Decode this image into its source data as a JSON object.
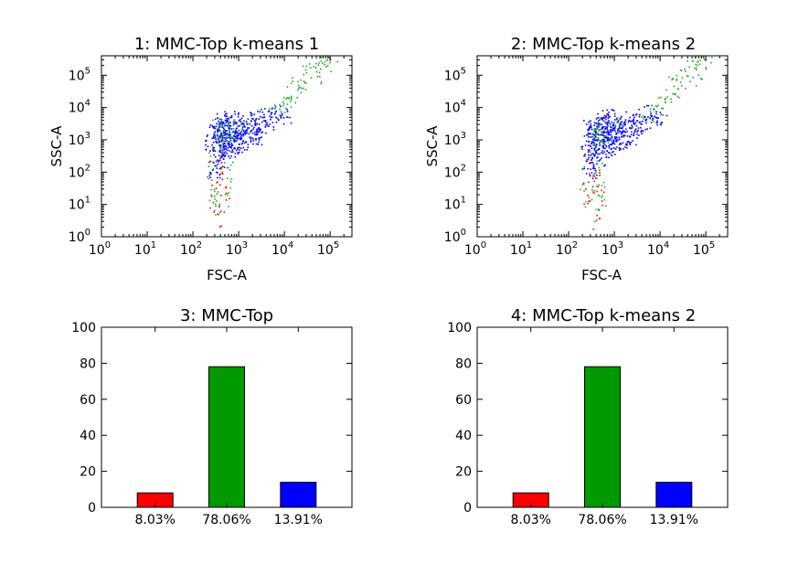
{
  "figure": {
    "colors": {
      "red": "#ff0000",
      "green": "#009900",
      "blue": "#0000ff",
      "green_points": "#22aa22"
    }
  },
  "chart_data": [
    {
      "id": "p1",
      "type": "scatter",
      "title": "1: MMC-Top k-means 1",
      "xlabel": "FSC-A",
      "ylabel": "SSC-A",
      "xscale": "log",
      "yscale": "log",
      "xlim": [
        1,
        300000
      ],
      "ylim": [
        1,
        400000
      ],
      "tick_values": [
        1,
        10,
        100,
        1000,
        10000,
        100000
      ],
      "tick_labels": [
        {
          "base": "10",
          "exp": "0"
        },
        {
          "base": "10",
          "exp": "1"
        },
        {
          "base": "10",
          "exp": "2"
        },
        {
          "base": "10",
          "exp": "3"
        },
        {
          "base": "10",
          "exp": "4"
        },
        {
          "base": "10",
          "exp": "5"
        }
      ],
      "series": [
        {
          "color": "#0000ff",
          "points": [
            [
              250,
              2000
            ],
            [
              300,
              2500
            ],
            [
              350,
              3000
            ],
            [
              400,
              1500
            ],
            [
              450,
              1000
            ],
            [
              500,
              2000
            ],
            [
              550,
              3500
            ],
            [
              600,
              2500
            ],
            [
              650,
              1200
            ],
            [
              700,
              2000
            ],
            [
              800,
              3000
            ],
            [
              900,
              1800
            ],
            [
              1000,
              2500
            ],
            [
              1100,
              1500
            ],
            [
              1200,
              3000
            ],
            [
              1400,
              2000
            ],
            [
              1600,
              4000
            ],
            [
              2000,
              3000
            ],
            [
              2500,
              5000
            ],
            [
              3000,
              2000
            ],
            [
              3500,
              6000
            ],
            [
              300,
              500
            ],
            [
              350,
              300
            ],
            [
              400,
              800
            ],
            [
              450,
              200
            ],
            [
              500,
              600
            ],
            [
              300,
              100
            ],
            [
              280,
              150
            ],
            [
              320,
              1000
            ],
            [
              600,
              800
            ],
            [
              700,
              500
            ],
            [
              800,
              900
            ],
            [
              1000,
              1200
            ],
            [
              1500,
              1000
            ],
            [
              2000,
              1500
            ],
            [
              5000,
              4000
            ],
            [
              6000,
              8000
            ],
            [
              260,
              800
            ],
            [
              380,
              400
            ],
            [
              420,
              1200
            ],
            [
              520,
              400
            ],
            [
              750,
              1500
            ],
            [
              950,
              700
            ],
            [
              1300,
              800
            ],
            [
              1800,
              2500
            ],
            [
              2200,
              1200
            ],
            [
              4000,
              3000
            ],
            [
              8000,
              6000
            ],
            [
              10000,
              5000
            ],
            [
              500,
              5000
            ],
            [
              400,
              4000
            ],
            [
              700,
              6000
            ]
          ]
        },
        {
          "color": "#22aa22",
          "points": [
            [
              15000,
              30000
            ],
            [
              20000,
              60000
            ],
            [
              25000,
              100000
            ],
            [
              30000,
              150000
            ],
            [
              40000,
              200000
            ],
            [
              50000,
              250000
            ],
            [
              60000,
              120000
            ],
            [
              80000,
              200000
            ],
            [
              100000,
              300000
            ],
            [
              12000,
              20000
            ],
            [
              10000,
              15000
            ],
            [
              8000,
              10000
            ],
            [
              6000,
              8000
            ],
            [
              5000,
              6000
            ],
            [
              30000,
              50000
            ],
            [
              45000,
              80000
            ],
            [
              70000,
              250000
            ],
            [
              25000,
              40000
            ],
            [
              18000,
              25000
            ],
            [
              9000,
              12000
            ],
            [
              300,
              1000
            ],
            [
              350,
              1500
            ],
            [
              400,
              2000
            ],
            [
              450,
              2500
            ],
            [
              500,
              1800
            ],
            [
              300,
              200
            ],
            [
              350,
              80
            ],
            [
              400,
              30
            ],
            [
              320,
              10
            ],
            [
              380,
              5
            ],
            [
              450,
              15
            ],
            [
              280,
              40
            ],
            [
              330,
              3000
            ],
            [
              420,
              1200
            ],
            [
              600,
              1500
            ],
            [
              700,
              1000
            ],
            [
              800,
              2500
            ],
            [
              1000,
              3000
            ],
            [
              300,
              300
            ],
            [
              360,
              600
            ],
            [
              500,
              150
            ],
            [
              550,
              40
            ],
            [
              250,
              20
            ]
          ]
        },
        {
          "color": "#ff0000",
          "points": [
            [
              270,
              20
            ],
            [
              300,
              10
            ],
            [
              330,
              50
            ],
            [
              380,
              8
            ],
            [
              420,
              30
            ],
            [
              480,
              15
            ],
            [
              300,
              100
            ],
            [
              350,
              200
            ],
            [
              280,
              60
            ],
            [
              260,
              300
            ],
            [
              400,
              5
            ],
            [
              500,
              80
            ],
            [
              320,
              3
            ],
            [
              360,
              12
            ],
            [
              440,
              40
            ]
          ]
        }
      ]
    },
    {
      "id": "p2",
      "type": "scatter",
      "title": "2: MMC-Top k-means 2",
      "xlabel": "FSC-A",
      "ylabel": "SSC-A",
      "xscale": "log",
      "yscale": "log",
      "xlim": [
        1,
        300000
      ],
      "ylim": [
        1,
        400000
      ],
      "tick_values": [
        1,
        10,
        100,
        1000,
        10000,
        100000
      ],
      "tick_labels": [
        {
          "base": "10",
          "exp": "0"
        },
        {
          "base": "10",
          "exp": "1"
        },
        {
          "base": "10",
          "exp": "2"
        },
        {
          "base": "10",
          "exp": "3"
        },
        {
          "base": "10",
          "exp": "4"
        },
        {
          "base": "10",
          "exp": "5"
        }
      ],
      "series": [
        {
          "color": "#0000ff",
          "points": [
            [
              250,
              2000
            ],
            [
              300,
              2500
            ],
            [
              350,
              3000
            ],
            [
              400,
              1500
            ],
            [
              450,
              1000
            ],
            [
              500,
              2000
            ],
            [
              550,
              3500
            ],
            [
              600,
              2500
            ],
            [
              650,
              1200
            ],
            [
              700,
              2000
            ],
            [
              800,
              3000
            ],
            [
              900,
              1800
            ],
            [
              1000,
              2500
            ],
            [
              1100,
              1500
            ],
            [
              1200,
              3000
            ],
            [
              1400,
              2000
            ],
            [
              1600,
              4000
            ],
            [
              2000,
              3000
            ],
            [
              2500,
              5000
            ],
            [
              3000,
              2000
            ],
            [
              3500,
              6000
            ],
            [
              300,
              500
            ],
            [
              350,
              300
            ],
            [
              400,
              800
            ],
            [
              450,
              200
            ],
            [
              500,
              600
            ],
            [
              300,
              100
            ],
            [
              280,
              150
            ],
            [
              320,
              1000
            ],
            [
              600,
              800
            ],
            [
              700,
              500
            ],
            [
              800,
              900
            ],
            [
              1000,
              1200
            ],
            [
              1500,
              1000
            ],
            [
              2000,
              1500
            ],
            [
              5000,
              4000
            ],
            [
              6000,
              8000
            ],
            [
              260,
              800
            ],
            [
              380,
              400
            ],
            [
              420,
              1200
            ],
            [
              520,
              400
            ],
            [
              750,
              1500
            ],
            [
              950,
              700
            ],
            [
              1300,
              800
            ],
            [
              1800,
              2500
            ],
            [
              2200,
              1200
            ],
            [
              4000,
              3000
            ],
            [
              8000,
              6000
            ],
            [
              10000,
              5000
            ],
            [
              500,
              5000
            ],
            [
              400,
              4000
            ],
            [
              700,
              6000
            ]
          ]
        },
        {
          "color": "#22aa22",
          "points": [
            [
              15000,
              30000
            ],
            [
              20000,
              60000
            ],
            [
              25000,
              100000
            ],
            [
              30000,
              150000
            ],
            [
              40000,
              200000
            ],
            [
              50000,
              250000
            ],
            [
              60000,
              120000
            ],
            [
              80000,
              200000
            ],
            [
              100000,
              300000
            ],
            [
              12000,
              20000
            ],
            [
              10000,
              15000
            ],
            [
              8000,
              10000
            ],
            [
              6000,
              8000
            ],
            [
              5000,
              6000
            ],
            [
              30000,
              50000
            ],
            [
              45000,
              80000
            ],
            [
              70000,
              250000
            ],
            [
              25000,
              40000
            ],
            [
              18000,
              25000
            ],
            [
              9000,
              12000
            ],
            [
              300,
              1000
            ],
            [
              350,
              1500
            ],
            [
              400,
              2000
            ],
            [
              450,
              2500
            ],
            [
              500,
              1800
            ],
            [
              300,
              200
            ],
            [
              350,
              80
            ],
            [
              400,
              30
            ],
            [
              320,
              10
            ],
            [
              380,
              5
            ],
            [
              450,
              15
            ],
            [
              280,
              40
            ],
            [
              330,
              3000
            ],
            [
              420,
              1200
            ],
            [
              600,
              1500
            ],
            [
              700,
              1000
            ],
            [
              800,
              2500
            ],
            [
              1000,
              3000
            ],
            [
              300,
              300
            ],
            [
              360,
              600
            ],
            [
              500,
              150
            ],
            [
              550,
              40
            ],
            [
              250,
              20
            ]
          ]
        },
        {
          "color": "#ff0000",
          "points": [
            [
              270,
              20
            ],
            [
              300,
              10
            ],
            [
              330,
              50
            ],
            [
              380,
              8
            ],
            [
              420,
              30
            ],
            [
              480,
              15
            ],
            [
              300,
              100
            ],
            [
              350,
              200
            ],
            [
              280,
              60
            ],
            [
              260,
              300
            ],
            [
              400,
              5
            ],
            [
              500,
              80
            ],
            [
              320,
              3
            ],
            [
              360,
              12
            ],
            [
              440,
              40
            ]
          ]
        }
      ]
    },
    {
      "id": "p3",
      "type": "bar",
      "title": "3: MMC-Top",
      "categories": [
        "8.03%",
        "78.06%",
        "13.91%"
      ],
      "values": [
        8.03,
        78.06,
        13.91
      ],
      "colors": [
        "#ff0000",
        "#009900",
        "#0000ff"
      ],
      "ylim": [
        0,
        100
      ],
      "yticks": [
        "0",
        "20",
        "40",
        "60",
        "80",
        "100"
      ],
      "ytick_values": [
        0,
        20,
        40,
        60,
        80,
        100
      ]
    },
    {
      "id": "p4",
      "type": "bar",
      "title": "4: MMC-Top k-means 2",
      "categories": [
        "8.03%",
        "78.06%",
        "13.91%"
      ],
      "values": [
        8.03,
        78.06,
        13.91
      ],
      "colors": [
        "#ff0000",
        "#009900",
        "#0000ff"
      ],
      "ylim": [
        0,
        100
      ],
      "yticks": [
        "0",
        "20",
        "40",
        "60",
        "80",
        "100"
      ],
      "ytick_values": [
        0,
        20,
        40,
        60,
        80,
        100
      ]
    }
  ]
}
